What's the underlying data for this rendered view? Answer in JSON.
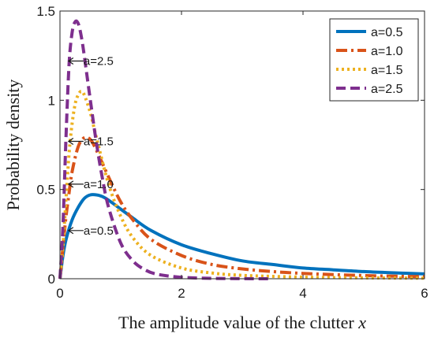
{
  "chart_data": {
    "type": "line",
    "title": "",
    "xlabel": "The amplitude value of the clutter",
    "xlabel_var": "x",
    "ylabel": "Probability density",
    "xlim": [
      0,
      6
    ],
    "ylim": [
      0,
      1.5
    ],
    "xticks": [
      "0",
      "2",
      "4",
      "6"
    ],
    "yticks": [
      "0",
      "0.5",
      "1",
      "1.5"
    ],
    "grid": false,
    "legend_position": "top-right",
    "series": [
      {
        "name": "a=0.5",
        "color": "#0072BD",
        "style": "solid",
        "x": [
          0,
          0.05,
          0.1,
          0.2,
          0.3,
          0.4,
          0.5,
          0.6,
          0.7,
          0.8,
          1.0,
          1.2,
          1.5,
          2.0,
          2.5,
          3.0,
          3.5,
          4.0,
          4.5,
          5.0,
          5.5,
          6.0
        ],
        "y": [
          0,
          0.13,
          0.22,
          0.33,
          0.4,
          0.45,
          0.47,
          0.47,
          0.46,
          0.44,
          0.39,
          0.34,
          0.27,
          0.19,
          0.14,
          0.1,
          0.08,
          0.06,
          0.05,
          0.04,
          0.033,
          0.027
        ]
      },
      {
        "name": "a=1.0",
        "color": "#D95319",
        "style": "dashdot",
        "x": [
          0,
          0.05,
          0.1,
          0.15,
          0.2,
          0.3,
          0.4,
          0.5,
          0.6,
          0.8,
          1.0,
          1.2,
          1.5,
          2.0,
          2.5,
          3.0,
          3.5,
          4.0,
          4.5,
          5.0,
          5.5,
          6.0
        ],
        "y": [
          0,
          0.18,
          0.35,
          0.48,
          0.6,
          0.74,
          0.79,
          0.78,
          0.72,
          0.57,
          0.43,
          0.33,
          0.22,
          0.13,
          0.08,
          0.055,
          0.04,
          0.03,
          0.023,
          0.018,
          0.014,
          0.012
        ]
      },
      {
        "name": "a=1.5",
        "color": "#EDB120",
        "style": "dotted",
        "x": [
          0,
          0.05,
          0.1,
          0.15,
          0.2,
          0.25,
          0.3,
          0.35,
          0.4,
          0.5,
          0.6,
          0.8,
          1.0,
          1.2,
          1.5,
          2.0,
          2.5,
          3.0,
          4.0,
          5.0,
          6.0
        ],
        "y": [
          0,
          0.18,
          0.45,
          0.7,
          0.87,
          0.98,
          1.03,
          1.05,
          1.03,
          0.93,
          0.79,
          0.53,
          0.35,
          0.23,
          0.13,
          0.06,
          0.032,
          0.019,
          0.009,
          0.005,
          0.003
        ]
      },
      {
        "name": "a=2.5",
        "color": "#7E2F8E",
        "style": "dashed",
        "x": [
          0,
          0.05,
          0.1,
          0.15,
          0.2,
          0.25,
          0.3,
          0.35,
          0.4,
          0.5,
          0.6,
          0.7,
          0.8,
          1.0,
          1.2,
          1.4,
          1.6,
          2.0,
          2.5,
          3.0,
          3.5
        ],
        "y": [
          0,
          0.3,
          0.8,
          1.2,
          1.38,
          1.44,
          1.43,
          1.36,
          1.25,
          1.0,
          0.76,
          0.56,
          0.4,
          0.2,
          0.1,
          0.05,
          0.025,
          0.008,
          0.002,
          0.0005,
          0
        ]
      }
    ],
    "annotations": [
      {
        "text": "a=2.5",
        "x": 0.18,
        "y": 1.22
      },
      {
        "text": "a=1.5",
        "x": 0.18,
        "y": 0.77
      },
      {
        "text": "a=1.0",
        "x": 0.18,
        "y": 0.53
      },
      {
        "text": "a=0.5",
        "x": 0.18,
        "y": 0.27
      }
    ]
  }
}
